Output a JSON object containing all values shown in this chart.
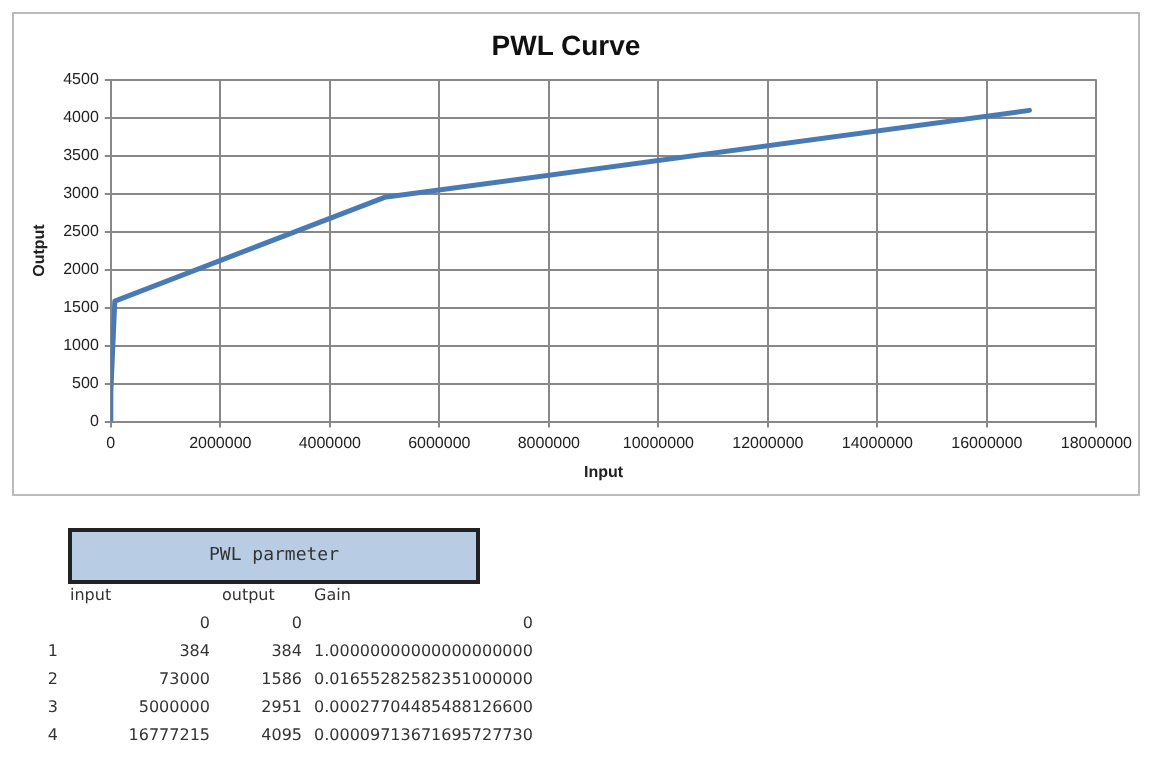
{
  "chart_data": {
    "type": "line",
    "title": "PWL Curve",
    "xlabel": "Input",
    "ylabel": "Output",
    "x": [
      0,
      384,
      73000,
      5000000,
      16777215
    ],
    "series": [
      {
        "color": "#4a7ab4",
        "values": [
          0,
          384,
          1586,
          2951,
          4095
        ]
      }
    ],
    "xlim": [
      0,
      18000000
    ],
    "xticks": [
      0,
      2000000,
      4000000,
      6000000,
      8000000,
      10000000,
      12000000,
      14000000,
      16000000,
      18000000
    ],
    "ylim": [
      0,
      4500
    ],
    "yticks": [
      0,
      500,
      1000,
      1500,
      2000,
      2500,
      3000,
      3500,
      4000,
      4500
    ],
    "grid": true,
    "legend": false,
    "marker": "none",
    "line_style": "solid",
    "annotations": [
      "PWL parmeter",
      "input",
      "output",
      "Gain",
      "0",
      "0",
      "0",
      "1",
      "384",
      "384",
      "1.00000000000000000000",
      "2",
      "73000",
      "1586",
      "0.01655282582351000000",
      "3",
      "5000000",
      "2951",
      "0.00027704485488126600",
      "4",
      "16777215",
      "4095",
      "0.00009713671695727730"
    ]
  }
}
